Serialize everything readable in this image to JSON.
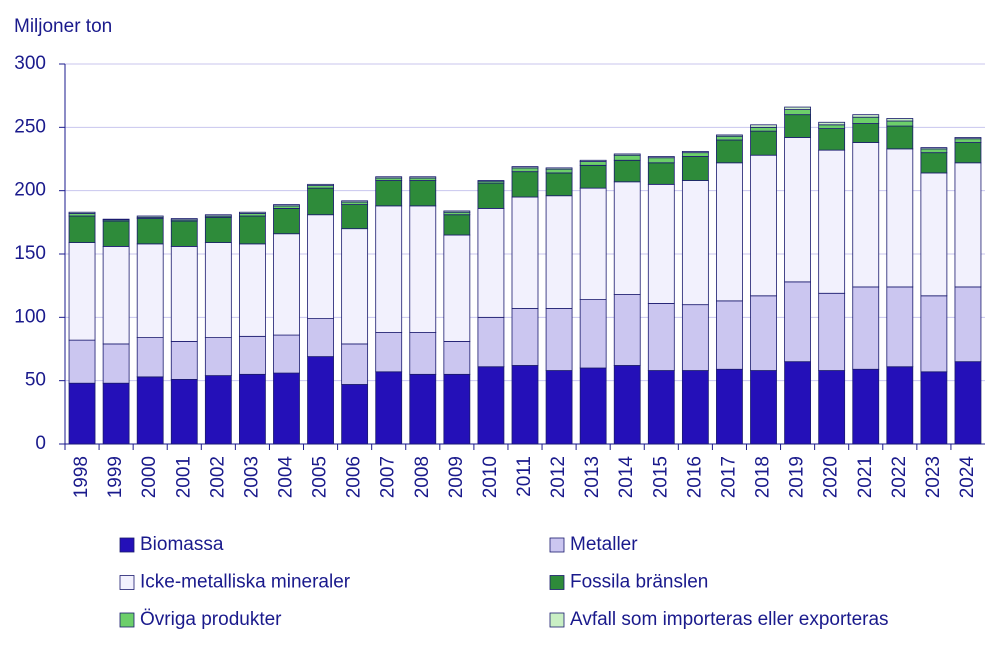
{
  "chart_data": {
    "type": "stacked-bar",
    "title": "Miljoner ton",
    "categories": [
      "1998",
      "1999",
      "2000",
      "2001",
      "2002",
      "2003",
      "2004",
      "2005",
      "2006",
      "2007",
      "2008",
      "2009",
      "2010",
      "2011",
      "2012",
      "2013",
      "2014",
      "2015",
      "2016",
      "2017",
      "2018",
      "2019",
      "2020",
      "2021",
      "2022",
      "2023",
      "2024"
    ],
    "series": [
      {
        "name": "Biomassa",
        "color": "#2410b8",
        "values": [
          48,
          48,
          53,
          51,
          54,
          55,
          56,
          69,
          47,
          57,
          55,
          55,
          61,
          62,
          58,
          60,
          62,
          58,
          58,
          59,
          58,
          65,
          58,
          59,
          61,
          57,
          65
        ]
      },
      {
        "name": "Metaller",
        "color": "#cbc6f0",
        "values": [
          34,
          31,
          31,
          30,
          30,
          30,
          30,
          30,
          32,
          31,
          33,
          26,
          39,
          45,
          49,
          54,
          56,
          53,
          52,
          54,
          59,
          63,
          61,
          65,
          63,
          60,
          59
        ]
      },
      {
        "name": "Icke-metalliska mineraler",
        "color": "#f2f1fd",
        "values": [
          77,
          77,
          74,
          75,
          75,
          73,
          80,
          82,
          91,
          100,
          100,
          84,
          86,
          88,
          89,
          88,
          89,
          94,
          98,
          109,
          111,
          114,
          113,
          114,
          109,
          97,
          98
        ]
      },
      {
        "name": "Fossila bränslen",
        "color": "#2e8b3a",
        "values": [
          21,
          20,
          20,
          20,
          20,
          22,
          20,
          21,
          19,
          20,
          20,
          16,
          20,
          20,
          18,
          18,
          17,
          17,
          19,
          18,
          19,
          18,
          17,
          15,
          18,
          16,
          16
        ]
      },
      {
        "name": "Övriga produkter",
        "color": "#6ccf6a",
        "values": [
          2,
          1,
          1,
          1,
          1,
          2,
          2,
          2,
          2,
          2,
          2,
          2,
          1.5,
          3,
          3,
          3,
          4,
          4,
          3,
          3,
          3,
          4,
          3,
          5,
          4,
          3,
          3
        ]
      },
      {
        "name": "Avfall som importeras eller exporteras",
        "color": "#c9efc4",
        "values": [
          1,
          0.5,
          1,
          1,
          1,
          1,
          1,
          1,
          1,
          1,
          1,
          1,
          0.5,
          1,
          1,
          1,
          1,
          1,
          1,
          1,
          2,
          2,
          2,
          2,
          2,
          1,
          1
        ]
      }
    ],
    "ylim": [
      0,
      300
    ],
    "yticks": [
      0,
      50,
      100,
      150,
      200,
      250,
      300
    ],
    "grid": true,
    "legend": "bottom"
  }
}
